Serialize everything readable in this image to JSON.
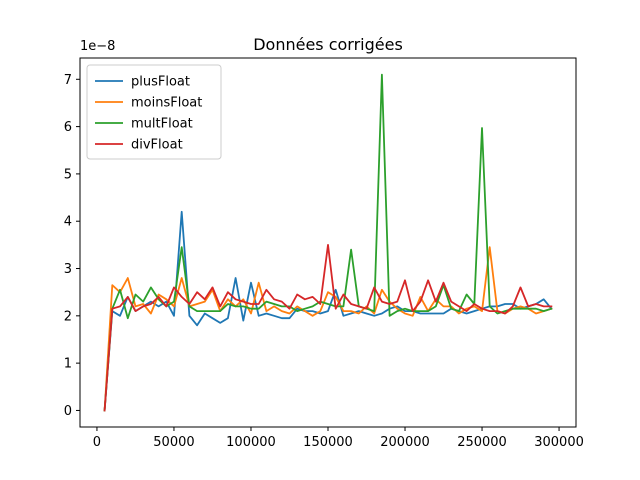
{
  "chart_data": {
    "type": "line",
    "title": "Données corrigées",
    "xlabel": "",
    "ylabel": "",
    "y_offset_label": "1e−8",
    "xlim": [
      -11000,
      311000
    ],
    "ylim": [
      -0.35,
      7.45
    ],
    "x_ticks": [
      0,
      50000,
      100000,
      150000,
      200000,
      250000,
      300000
    ],
    "x_tick_labels": [
      "0",
      "50000",
      "100000",
      "150000",
      "200000",
      "250000",
      "300000"
    ],
    "y_ticks": [
      0,
      1,
      2,
      3,
      4,
      5,
      6,
      7
    ],
    "y_tick_labels": [
      "0",
      "1",
      "2",
      "3",
      "4",
      "5",
      "6",
      "7"
    ],
    "grid": false,
    "legend_position": "top-left",
    "x": [
      5000,
      10000,
      15000,
      20000,
      25000,
      30000,
      35000,
      40000,
      45000,
      50000,
      55000,
      60000,
      65000,
      70000,
      75000,
      80000,
      85000,
      90000,
      95000,
      100000,
      105000,
      110000,
      115000,
      120000,
      125000,
      130000,
      135000,
      140000,
      145000,
      150000,
      155000,
      160000,
      165000,
      170000,
      175000,
      180000,
      185000,
      190000,
      195000,
      200000,
      205000,
      210000,
      215000,
      220000,
      225000,
      230000,
      235000,
      240000,
      245000,
      250000,
      255000,
      260000,
      265000,
      270000,
      275000,
      280000,
      285000,
      290000,
      295000
    ],
    "series": [
      {
        "name": "plusFloat",
        "color": "#1f77b4",
        "values": [
          0.0,
          2.1,
          2.0,
          2.4,
          2.1,
          2.2,
          2.3,
          2.2,
          2.3,
          2.0,
          4.2,
          2.0,
          1.8,
          2.05,
          1.95,
          1.85,
          1.95,
          2.8,
          1.9,
          2.7,
          2.0,
          2.05,
          2.0,
          1.95,
          1.95,
          2.15,
          2.1,
          2.1,
          2.05,
          2.1,
          2.55,
          2.0,
          2.05,
          2.1,
          2.05,
          2.0,
          2.05,
          2.15,
          2.2,
          2.1,
          2.1,
          2.05,
          2.05,
          2.05,
          2.05,
          2.15,
          2.1,
          2.05,
          2.1,
          2.15,
          2.2,
          2.2,
          2.25,
          2.25,
          2.15,
          2.2,
          2.25,
          2.35,
          2.15
        ]
      },
      {
        "name": "moinsFloat",
        "color": "#ff7f0e",
        "values": [
          0.0,
          2.65,
          2.5,
          2.8,
          2.2,
          2.25,
          2.05,
          2.45,
          2.35,
          2.2,
          2.8,
          2.2,
          2.25,
          2.3,
          2.55,
          2.1,
          2.35,
          2.2,
          2.35,
          2.05,
          2.7,
          2.1,
          2.2,
          2.1,
          2.05,
          2.2,
          2.1,
          2.0,
          2.1,
          2.5,
          2.4,
          2.1,
          2.1,
          2.05,
          2.2,
          2.05,
          2.55,
          2.3,
          2.15,
          2.05,
          2.0,
          2.4,
          2.1,
          2.35,
          2.2,
          2.2,
          2.05,
          2.15,
          2.2,
          2.1,
          3.45,
          2.1,
          2.05,
          2.15,
          2.2,
          2.15,
          2.05,
          2.1,
          2.15
        ]
      },
      {
        "name": "multFloat",
        "color": "#2ca02c",
        "values": [
          0.0,
          2.15,
          2.55,
          1.95,
          2.45,
          2.3,
          2.6,
          2.35,
          2.2,
          2.3,
          3.45,
          2.2,
          2.1,
          2.1,
          2.1,
          2.1,
          2.25,
          2.2,
          2.2,
          2.15,
          2.15,
          2.3,
          2.25,
          2.2,
          2.2,
          2.1,
          2.15,
          2.2,
          2.3,
          2.25,
          2.2,
          2.2,
          3.4,
          2.2,
          2.15,
          2.1,
          7.1,
          2.0,
          2.1,
          2.15,
          2.1,
          2.1,
          2.1,
          2.2,
          2.65,
          2.15,
          2.1,
          2.45,
          2.25,
          5.97,
          2.2,
          2.05,
          2.1,
          2.15,
          2.15,
          2.15,
          2.15,
          2.1,
          2.15
        ]
      },
      {
        "name": "divFloat",
        "color": "#d62728",
        "values": [
          0.0,
          2.15,
          2.2,
          2.4,
          2.1,
          2.2,
          2.25,
          2.4,
          2.2,
          2.6,
          2.4,
          2.25,
          2.5,
          2.35,
          2.6,
          2.2,
          2.5,
          2.35,
          2.3,
          2.25,
          2.25,
          2.55,
          2.35,
          2.3,
          2.15,
          2.45,
          2.35,
          2.4,
          2.25,
          3.5,
          2.15,
          2.45,
          2.25,
          2.2,
          2.15,
          2.6,
          2.3,
          2.25,
          2.3,
          2.75,
          2.1,
          2.3,
          2.75,
          2.3,
          2.7,
          2.3,
          2.2,
          2.1,
          2.25,
          2.15,
          2.1,
          2.1,
          2.05,
          2.2,
          2.6,
          2.2,
          2.25,
          2.2,
          2.2
        ]
      }
    ]
  }
}
